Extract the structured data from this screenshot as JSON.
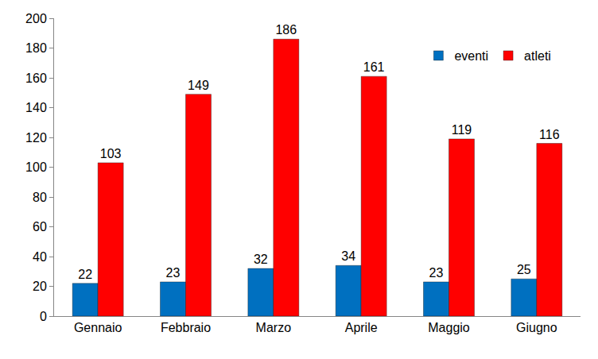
{
  "chart_data": {
    "type": "bar",
    "categories": [
      "Gennaio",
      "Febbraio",
      "Marzo",
      "Aprile",
      "Maggio",
      "Giugno"
    ],
    "series": [
      {
        "name": "eventi",
        "color": "#0070c0",
        "values": [
          22,
          23,
          32,
          34,
          23,
          25
        ]
      },
      {
        "name": "atleti",
        "color": "#ff0000",
        "values": [
          103,
          149,
          186,
          161,
          119,
          116
        ]
      }
    ],
    "ylim": [
      0,
      200
    ],
    "yticks": [
      0,
      20,
      40,
      60,
      80,
      100,
      120,
      140,
      160,
      180,
      200
    ],
    "grid": false,
    "legend": "upper right",
    "data_labels": true
  }
}
